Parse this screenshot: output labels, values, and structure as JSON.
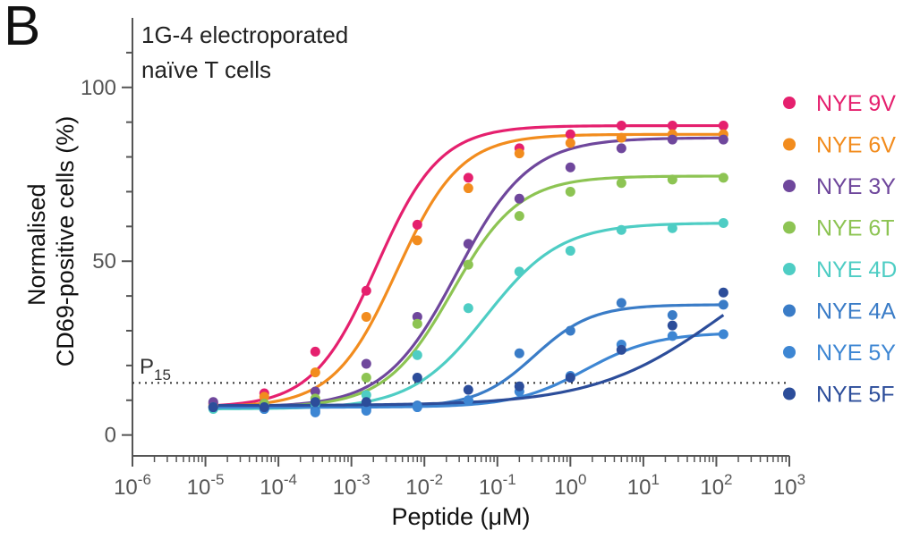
{
  "panel_label": "B",
  "annotation": {
    "line1": "1G-4 electroporated",
    "line2": "naïve T cells"
  },
  "chart_data": {
    "type": "scatter",
    "xscale": "log",
    "xlabel": "Peptide (μM)",
    "ylabel_line1": "Normalised",
    "ylabel_line2": "CD69-positive cells (%)",
    "xlim_exp": [
      -6,
      3
    ],
    "ylim": [
      -6,
      120
    ],
    "x_tick_exponents": [
      -6,
      -5,
      -4,
      -3,
      -2,
      -1,
      0,
      1,
      2,
      3
    ],
    "x_tick_base": "10",
    "x_tick_labels": [
      "-6",
      "-5",
      "-4",
      "-3",
      "-2",
      "-1",
      "0",
      "1",
      "2",
      "3"
    ],
    "y_ticks": [
      0,
      50,
      100
    ],
    "y_tick_labels": [
      "0",
      "50",
      "100"
    ],
    "reference_line": {
      "y": 15,
      "label_main": "P",
      "label_sub": "15",
      "style": "dotted"
    },
    "x": [
      1.28e-05,
      6.4e-05,
      0.00032,
      0.0016,
      0.008,
      0.04,
      0.2,
      1,
      5,
      25,
      125
    ],
    "series": [
      {
        "name": "NYE 9V",
        "color": "#e5206e",
        "values": [
          9,
          12,
          24,
          41.5,
          60.5,
          74,
          82.5,
          86.5,
          89,
          89,
          89
        ],
        "fit": {
          "bottom": 8,
          "top": 89,
          "ec50": 0.0022,
          "hill": 1.0
        }
      },
      {
        "name": "NYE 6V",
        "color": "#f28c1e",
        "values": [
          8.5,
          11,
          18,
          34,
          56,
          71,
          81,
          84,
          85.5,
          86.5,
          86.5
        ],
        "fit": {
          "bottom": 8,
          "top": 86.5,
          "ec50": 0.0042,
          "hill": 1.0
        }
      },
      {
        "name": "NYE 3Y",
        "color": "#6f479c",
        "values": [
          9.5,
          9,
          12.5,
          20.5,
          34,
          55,
          68,
          77,
          82.5,
          85,
          85
        ],
        "fit": {
          "bottom": 8,
          "top": 85.5,
          "ec50": 0.028,
          "hill": 0.88
        }
      },
      {
        "name": "NYE 6T",
        "color": "#8dc453",
        "values": [
          8,
          9,
          10.5,
          16.5,
          32,
          49,
          63,
          70,
          72.5,
          73.5,
          74
        ],
        "fit": {
          "bottom": 8,
          "top": 74.5,
          "ec50": 0.024,
          "hill": 0.95
        }
      },
      {
        "name": "NYE 4D",
        "color": "#4ecdc4",
        "values": [
          7.5,
          7.5,
          9,
          11.5,
          23,
          36.5,
          47,
          53,
          59,
          59.5,
          61
        ],
        "fit": {
          "bottom": 7.5,
          "top": 61,
          "ec50": 0.07,
          "hill": 0.85
        }
      },
      {
        "name": "NYE 4A",
        "color": "#3a7cc7",
        "values": [
          8,
          7.5,
          7,
          7.5,
          8.5,
          10,
          23.5,
          30,
          38,
          34.5,
          37.5
        ],
        "fit": {
          "bottom": 8,
          "top": 37.5,
          "ec50": 0.32,
          "hill": 1.1
        }
      },
      {
        "name": "NYE 5Y",
        "color": "#3d86d3",
        "values": [
          8,
          7.5,
          6.5,
          7,
          8,
          10,
          12.5,
          17,
          26,
          28.5,
          29
        ],
        "fit": {
          "bottom": 8,
          "top": 29.5,
          "ec50": 1.6,
          "hill": 0.9
        }
      },
      {
        "name": "NYE 5F",
        "color": "#2c4d9a",
        "values": [
          8,
          8,
          9.5,
          9.5,
          16.5,
          13,
          14,
          16.5,
          24.5,
          31.5,
          41
        ],
        "fit": {
          "bottom": 8.5,
          "top": 60,
          "ec50": 120,
          "hill": 0.5
        }
      }
    ]
  }
}
